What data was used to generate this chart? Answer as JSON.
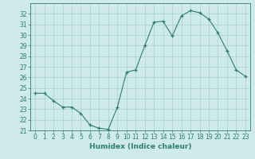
{
  "x": [
    0,
    1,
    2,
    3,
    4,
    5,
    6,
    7,
    8,
    9,
    10,
    11,
    12,
    13,
    14,
    15,
    16,
    17,
    18,
    19,
    20,
    21,
    22,
    23
  ],
  "y": [
    24.5,
    24.5,
    23.8,
    23.2,
    23.2,
    22.6,
    21.5,
    21.2,
    21.1,
    23.2,
    26.5,
    26.7,
    29.0,
    31.2,
    31.3,
    29.9,
    31.8,
    32.3,
    32.1,
    31.5,
    30.2,
    28.5,
    26.7,
    26.1
  ],
  "line_color": "#2e7d6e",
  "marker": "+",
  "marker_size": 3,
  "bg_color": "#ceeaea",
  "grid_color": "#aacfcf",
  "axis_color": "#2e7d6e",
  "tick_color": "#2e7d6e",
  "xlabel": "Humidex (Indice chaleur)",
  "ylim": [
    21,
    33
  ],
  "xlim": [
    -0.5,
    23.5
  ],
  "yticks": [
    21,
    22,
    23,
    24,
    25,
    26,
    27,
    28,
    29,
    30,
    31,
    32
  ],
  "xticks": [
    0,
    1,
    2,
    3,
    4,
    5,
    6,
    7,
    8,
    9,
    10,
    11,
    12,
    13,
    14,
    15,
    16,
    17,
    18,
    19,
    20,
    21,
    22,
    23
  ],
  "tick_fontsize": 5.5,
  "xlabel_fontsize": 6.5
}
